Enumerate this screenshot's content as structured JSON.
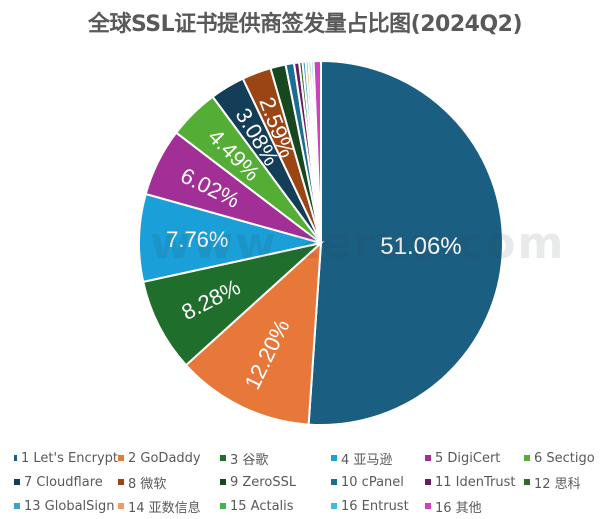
{
  "title": "全球SSL证书提供商签发量占比图(2024Q2)",
  "watermark": "www.zerus.com",
  "chart_data": {
    "type": "pie",
    "title": "全球SSL证书提供商签发量占比图(2024Q2)",
    "start_angle_deg": 0,
    "direction": "clockwise",
    "legend_position": "bottom",
    "slices": [
      {
        "label": "1 Let's Encrypt",
        "value": 51.06,
        "color": "#1a5e82",
        "show_label": true,
        "data_label": "51.06%"
      },
      {
        "label": "2 GoDaddy",
        "value": 12.2,
        "color": "#e8773a",
        "show_label": true,
        "data_label": "12.20%"
      },
      {
        "label": "3 谷歌",
        "value": 8.28,
        "color": "#1f6e2c",
        "show_label": true,
        "data_label": "8.28%"
      },
      {
        "label": "4 亚马逊",
        "value": 7.76,
        "color": "#1a9fd8",
        "show_label": true,
        "data_label": "7.76%"
      },
      {
        "label": "5 DigiCert",
        "value": 6.02,
        "color": "#a22f95",
        "show_label": true,
        "data_label": "6.02%"
      },
      {
        "label": "6 Sectigo",
        "value": 4.49,
        "color": "#54ad35",
        "show_label": true,
        "data_label": "4.49%"
      },
      {
        "label": "7 Cloudflare",
        "value": 3.08,
        "color": "#143d57",
        "show_label": true,
        "data_label": "3.08%"
      },
      {
        "label": "8 微软",
        "value": 2.59,
        "color": "#9c4514",
        "show_label": true,
        "data_label": "2.59%"
      },
      {
        "label": "9 ZeroSSL",
        "value": 1.35,
        "color": "#17471f",
        "show_label": false,
        "data_label": ""
      },
      {
        "label": "10 cPanel",
        "value": 0.75,
        "color": "#1a6e92",
        "show_label": false,
        "data_label": ""
      },
      {
        "label": "11 IdenTrust",
        "value": 0.45,
        "color": "#6a1a5e",
        "show_label": false,
        "data_label": ""
      },
      {
        "label": "12 思科",
        "value": 0.3,
        "color": "#2e6b26",
        "show_label": false,
        "data_label": ""
      },
      {
        "label": "13 GlobalSign",
        "value": 0.28,
        "color": "#3aa0d0",
        "show_label": false,
        "data_label": ""
      },
      {
        "label": "14 亚数信息",
        "value": 0.25,
        "color": "#f09a6a",
        "show_label": false,
        "data_label": ""
      },
      {
        "label": "15 Actalis",
        "value": 0.22,
        "color": "#3cb84a",
        "show_label": false,
        "data_label": ""
      },
      {
        "label": "16 Entrust",
        "value": 0.22,
        "color": "#40b8e8",
        "show_label": false,
        "data_label": ""
      },
      {
        "label": "16 其他",
        "value": 0.65,
        "color": "#d040c0",
        "show_label": false,
        "data_label": ""
      }
    ]
  },
  "legend": {
    "rows": [
      [
        {
          "label": "1 Let's Encrypt",
          "color": "#1a5e82"
        },
        {
          "label": "2 GoDaddy",
          "color": "#e8773a"
        },
        {
          "label": "3 谷歌",
          "color": "#1f6e2c"
        },
        {
          "label": "4 亚马逊",
          "color": "#1a9fd8"
        },
        {
          "label": "5 DigiCert",
          "color": "#a22f95"
        },
        {
          "label": "6 Sectigo",
          "color": "#54ad35"
        }
      ],
      [
        {
          "label": "7 Cloudflare",
          "color": "#143d57"
        },
        {
          "label": "8 微软",
          "color": "#9c4514"
        },
        {
          "label": "9 ZeroSSL",
          "color": "#17471f"
        },
        {
          "label": "10 cPanel",
          "color": "#1a6e92"
        },
        {
          "label": "11 IdenTrust",
          "color": "#6a1a5e"
        },
        {
          "label": "12 思科",
          "color": "#2e6b26"
        }
      ],
      [
        {
          "label": "13 GlobalSign",
          "color": "#3aa0d0"
        },
        {
          "label": "14 亚数信息",
          "color": "#f09a6a"
        },
        {
          "label": "15 Actalis",
          "color": "#3cb84a"
        },
        {
          "label": "16 Entrust",
          "color": "#40b8e8"
        },
        {
          "label": "16 其他",
          "color": "#d040c0"
        }
      ]
    ]
  }
}
